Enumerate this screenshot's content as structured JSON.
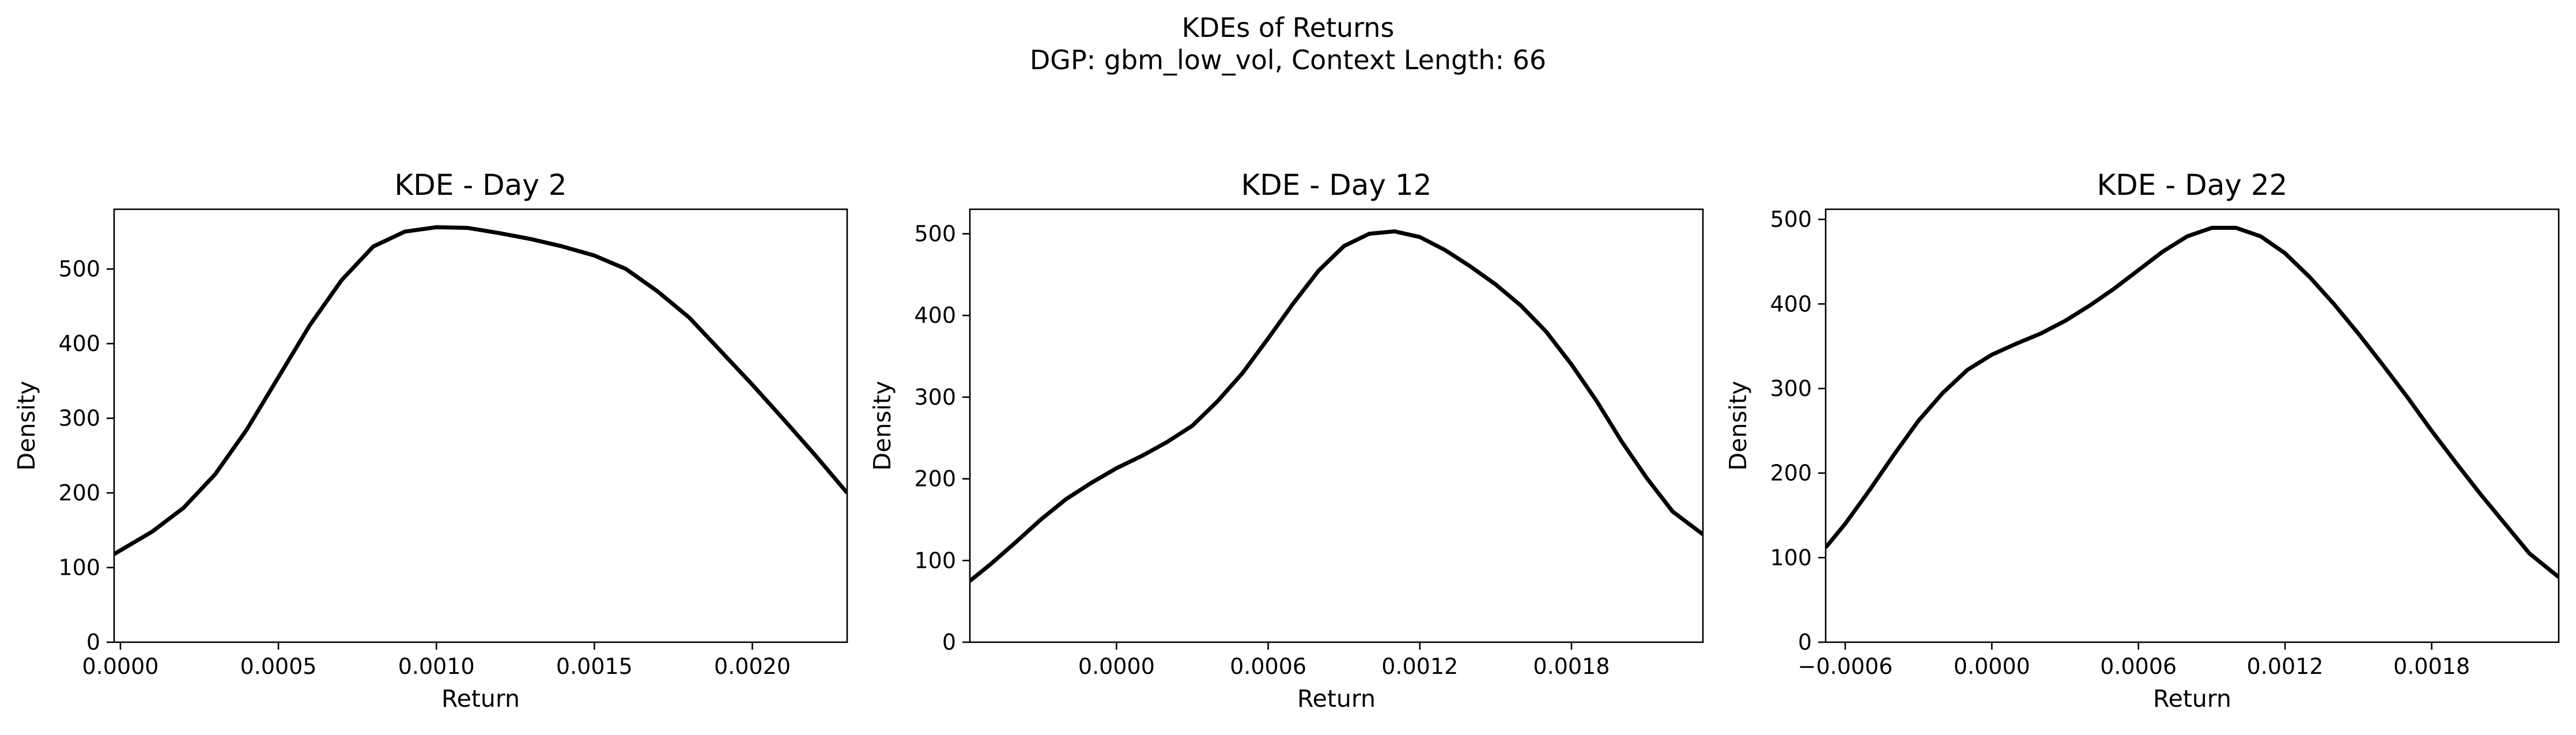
{
  "figure": {
    "title_line1": "KDEs of Returns",
    "title_line2": "DGP: gbm_low_vol, Context Length: 66"
  },
  "chart_data": [
    {
      "type": "line",
      "title": "KDE - Day 2",
      "xlabel": "Return",
      "ylabel": "Density",
      "xlim": [
        -2e-05,
        0.0023
      ],
      "ylim": [
        0,
        580
      ],
      "xticks": [
        0.0,
        0.0005,
        0.001,
        0.0015,
        0.002
      ],
      "xtick_labels": [
        "0.0000",
        "0.0005",
        "0.0010",
        "0.0015",
        "0.0020"
      ],
      "yticks": [
        0,
        100,
        200,
        300,
        400,
        500
      ],
      "ytick_labels": [
        "0",
        "100",
        "200",
        "300",
        "400",
        "500"
      ],
      "grid": false,
      "series": [
        {
          "color": "#000000",
          "x": [
            -2e-05,
            0.0001,
            0.0002,
            0.0003,
            0.0004,
            0.0005,
            0.0006,
            0.0007,
            0.0008,
            0.0009,
            0.001,
            0.0011,
            0.0012,
            0.0013,
            0.0014,
            0.0015,
            0.0016,
            0.0017,
            0.0018,
            0.0019,
            0.002,
            0.0021,
            0.0022,
            0.0023
          ],
          "y": [
            118,
            148,
            180,
            225,
            285,
            355,
            425,
            485,
            530,
            550,
            556,
            555,
            548,
            540,
            530,
            518,
            500,
            470,
            435,
            390,
            345,
            298,
            250,
            200
          ]
        }
      ]
    },
    {
      "type": "line",
      "title": "KDE - Day 12",
      "xlabel": "Return",
      "ylabel": "Density",
      "xlim": [
        -0.00058,
        0.00232
      ],
      "ylim": [
        0,
        530
      ],
      "xticks": [
        0.0,
        0.0006,
        0.0012,
        0.0018
      ],
      "xtick_labels": [
        "0.0000",
        "0.0006",
        "0.0012",
        "0.0018"
      ],
      "yticks": [
        0,
        100,
        200,
        300,
        400,
        500
      ],
      "ytick_labels": [
        "0",
        "100",
        "200",
        "300",
        "400",
        "500"
      ],
      "grid": false,
      "series": [
        {
          "color": "#000000",
          "x": [
            -0.00058,
            -0.0005,
            -0.0004,
            -0.0003,
            -0.0002,
            -0.0001,
            0.0,
            0.0001,
            0.0002,
            0.0003,
            0.0004,
            0.0005,
            0.0006,
            0.0007,
            0.0008,
            0.0009,
            0.001,
            0.0011,
            0.0012,
            0.0013,
            0.0014,
            0.0015,
            0.0016,
            0.0017,
            0.0018,
            0.0019,
            0.002,
            0.0021,
            0.0022,
            0.00232
          ],
          "y": [
            75,
            95,
            122,
            150,
            175,
            195,
            213,
            228,
            245,
            265,
            295,
            330,
            372,
            415,
            455,
            485,
            500,
            503,
            496,
            480,
            460,
            438,
            412,
            380,
            340,
            295,
            245,
            200,
            160,
            132
          ]
        }
      ]
    },
    {
      "type": "line",
      "title": "KDE - Day 22",
      "xlabel": "Return",
      "ylabel": "Density",
      "xlim": [
        -0.00068,
        0.00232
      ],
      "ylim": [
        0,
        512
      ],
      "xticks": [
        -0.0006,
        0.0,
        0.0006,
        0.0012,
        0.0018
      ],
      "xtick_labels": [
        "−0.0006",
        "0.0000",
        "0.0006",
        "0.0012",
        "0.0018"
      ],
      "yticks": [
        0,
        100,
        200,
        300,
        400,
        500
      ],
      "ytick_labels": [
        "0",
        "100",
        "200",
        "300",
        "400",
        "500"
      ],
      "grid": false,
      "series": [
        {
          "color": "#000000",
          "x": [
            -0.00068,
            -0.0006,
            -0.0005,
            -0.0004,
            -0.0003,
            -0.0002,
            -0.0001,
            0.0,
            0.0001,
            0.0002,
            0.0003,
            0.0004,
            0.0005,
            0.0006,
            0.0007,
            0.0008,
            0.0009,
            0.001,
            0.0011,
            0.0012,
            0.0013,
            0.0014,
            0.0015,
            0.0016,
            0.0017,
            0.0018,
            0.0019,
            0.002,
            0.0021,
            0.0022,
            0.00232
          ],
          "y": [
            112,
            140,
            180,
            222,
            262,
            295,
            322,
            340,
            353,
            365,
            380,
            398,
            418,
            440,
            462,
            480,
            490,
            490,
            480,
            460,
            432,
            400,
            365,
            328,
            290,
            250,
            212,
            175,
            140,
            105,
            77
          ]
        }
      ]
    }
  ]
}
